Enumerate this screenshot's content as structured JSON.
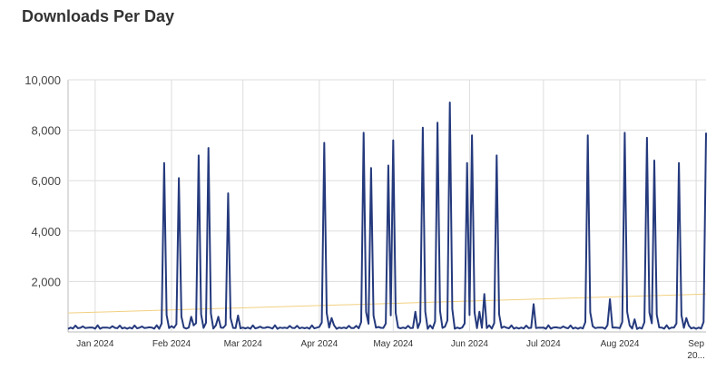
{
  "chart_data": {
    "type": "line",
    "title": "Downloads Per Day",
    "xlabel": "",
    "ylabel": "",
    "x_range": [
      "2023-12-21",
      "2024-09-05"
    ],
    "ylim": [
      0,
      10000
    ],
    "y_ticks": [
      2000,
      4000,
      6000,
      8000,
      10000
    ],
    "y_tick_labels": [
      "2,000",
      "4,000",
      "6,000",
      "8,000",
      "10,000"
    ],
    "x_ticks": [
      "2024-01-01",
      "2024-02-01",
      "2024-03-01",
      "2024-04-01",
      "2024-05-01",
      "2024-06-01",
      "2024-07-01",
      "2024-08-01",
      "2024-09-01"
    ],
    "x_tick_labels": [
      "Jan 2024",
      "Feb 2024",
      "Mar 2024",
      "Apr 2024",
      "May 2024",
      "Jun 2024",
      "Jul 2024",
      "Aug 2024",
      "Sep"
    ],
    "x_tick_labels_2": [
      "",
      "",
      "",
      "",
      "",
      "",
      "",
      "",
      "20..."
    ],
    "grid": true,
    "legend": "none",
    "series": [
      {
        "color": "#253a7d",
        "baseline": 120,
        "spikes": [
          {
            "x": "2024-01-29",
            "y": 6700
          },
          {
            "x": "2024-02-04",
            "y": 6100
          },
          {
            "x": "2024-02-09",
            "y": 600
          },
          {
            "x": "2024-02-12",
            "y": 7000
          },
          {
            "x": "2024-02-16",
            "y": 7300
          },
          {
            "x": "2024-02-20",
            "y": 600
          },
          {
            "x": "2024-02-24",
            "y": 5500
          },
          {
            "x": "2024-02-28",
            "y": 650
          },
          {
            "x": "2024-04-03",
            "y": 7500
          },
          {
            "x": "2024-04-06",
            "y": 550
          },
          {
            "x": "2024-04-19",
            "y": 7900
          },
          {
            "x": "2024-04-22",
            "y": 6500
          },
          {
            "x": "2024-04-29",
            "y": 6600
          },
          {
            "x": "2024-05-01",
            "y": 7600
          },
          {
            "x": "2024-05-10",
            "y": 800
          },
          {
            "x": "2024-05-13",
            "y": 8100
          },
          {
            "x": "2024-05-19",
            "y": 8300
          },
          {
            "x": "2024-05-24",
            "y": 9100
          },
          {
            "x": "2024-05-31",
            "y": 6700
          },
          {
            "x": "2024-06-02",
            "y": 7800
          },
          {
            "x": "2024-06-05",
            "y": 800
          },
          {
            "x": "2024-06-07",
            "y": 1500
          },
          {
            "x": "2024-06-12",
            "y": 7000
          },
          {
            "x": "2024-06-27",
            "y": 1100
          },
          {
            "x": "2024-07-19",
            "y": 7800
          },
          {
            "x": "2024-07-28",
            "y": 1300
          },
          {
            "x": "2024-08-03",
            "y": 7900
          },
          {
            "x": "2024-08-07",
            "y": 500
          },
          {
            "x": "2024-08-12",
            "y": 7700
          },
          {
            "x": "2024-08-15",
            "y": 6800
          },
          {
            "x": "2024-08-25",
            "y": 6700
          },
          {
            "x": "2024-08-28",
            "y": 550
          },
          {
            "x": "2024-09-05",
            "y": 7900
          }
        ]
      },
      {
        "color": "#f2d080",
        "type": "trend",
        "x": [
          "2023-12-21",
          "2024-09-05"
        ],
        "y": [
          750,
          1500
        ]
      }
    ]
  }
}
